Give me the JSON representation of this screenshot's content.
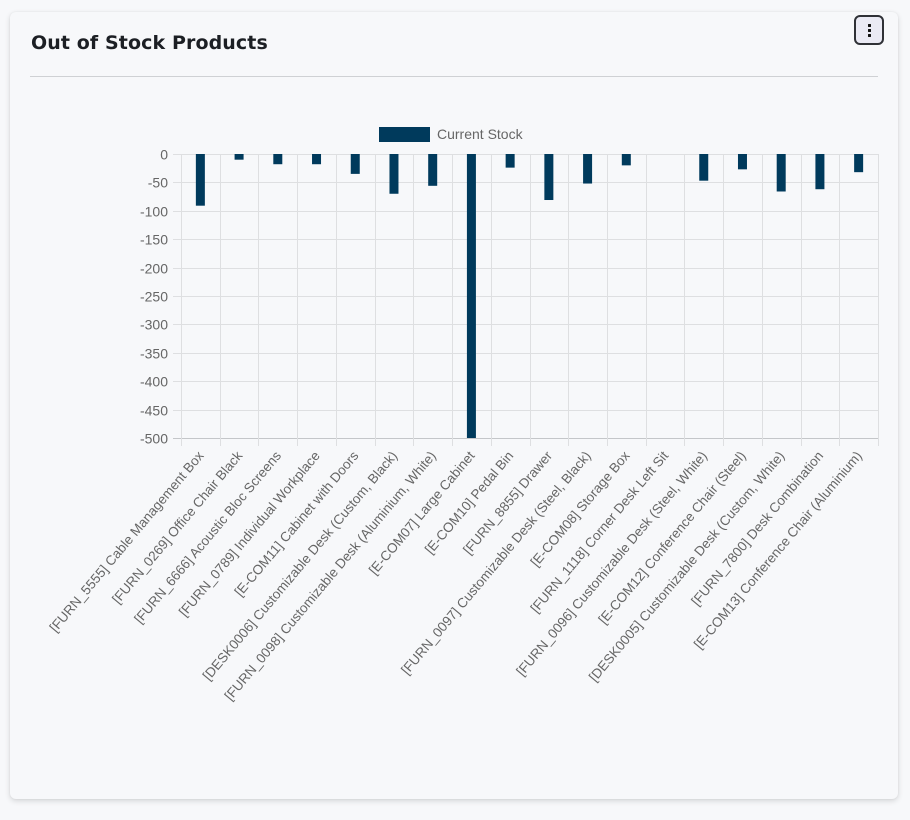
{
  "card": {
    "title": "Out of Stock Products",
    "menu_icon": "kebab-vertical-icon"
  },
  "colors": {
    "bar": "#003a5c",
    "grid": "#dedfe1",
    "axis_text": "#666666"
  },
  "chart_data": {
    "type": "bar",
    "title": "",
    "xlabel": "",
    "ylabel": "",
    "ylim": [
      -500,
      0
    ],
    "yticks": [
      0,
      -50,
      -100,
      -150,
      -200,
      -250,
      -300,
      -350,
      -400,
      -450,
      -500
    ],
    "grid": true,
    "legend_position": "top-center",
    "series": [
      {
        "name": "Current Stock",
        "values": [
          -91,
          -10,
          -18,
          -18,
          -35,
          -70,
          -56,
          -500,
          -24,
          -81,
          -52,
          -20,
          0,
          -47,
          -27,
          -66,
          -62,
          -32
        ]
      }
    ],
    "categories": [
      "[FURN_5555] Cable Management Box",
      "[FURN_0269] Office Chair Black",
      "[FURN_6666] Acoustic Bloc Screens",
      "[FURN_0789] Individual Workplace",
      "[E-COM11] Cabinet with Doors",
      "[DESK0006] Customizable Desk (Custom, Black)",
      "[FURN_0098] Customizable Desk (Aluminium, White)",
      "[E-COM07] Large Cabinet",
      "[E-COM10] Pedal Bin",
      "[FURN_8855] Drawer",
      "[FURN_0097] Customizable Desk (Steel, Black)",
      "[E-COM08] Storage Box",
      "[FURN_1118] Corner Desk Left Sit",
      "[FURN_0096] Customizable Desk (Steel, White)",
      "[E-COM12] Conference Chair (Steel)",
      "[DESK0005] Customizable Desk (Custom, White)",
      "[FURN_7800] Desk Combination",
      "[E-COM13] Conference Chair (Aluminium)"
    ]
  }
}
